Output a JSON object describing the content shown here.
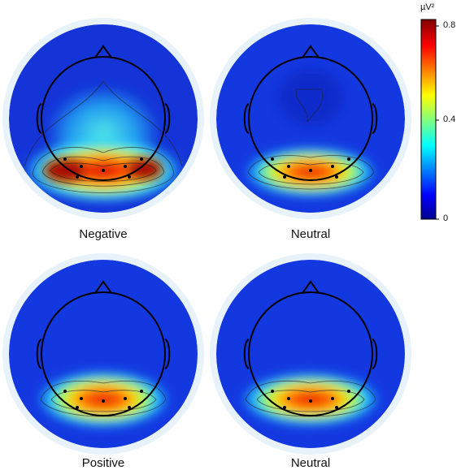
{
  "maps": [
    {
      "label": "Negative"
    },
    {
      "label": "Neutral"
    },
    {
      "label": "Positive"
    },
    {
      "label": "Neutral"
    }
  ],
  "colorbar": {
    "unit": "µV²",
    "ticks": [
      "0.8",
      "0.4",
      "0"
    ],
    "colormap": [
      "#00008f",
      "#0000ff",
      "#00ffff",
      "#ffff00",
      "#ff0000",
      "#800000"
    ]
  }
}
